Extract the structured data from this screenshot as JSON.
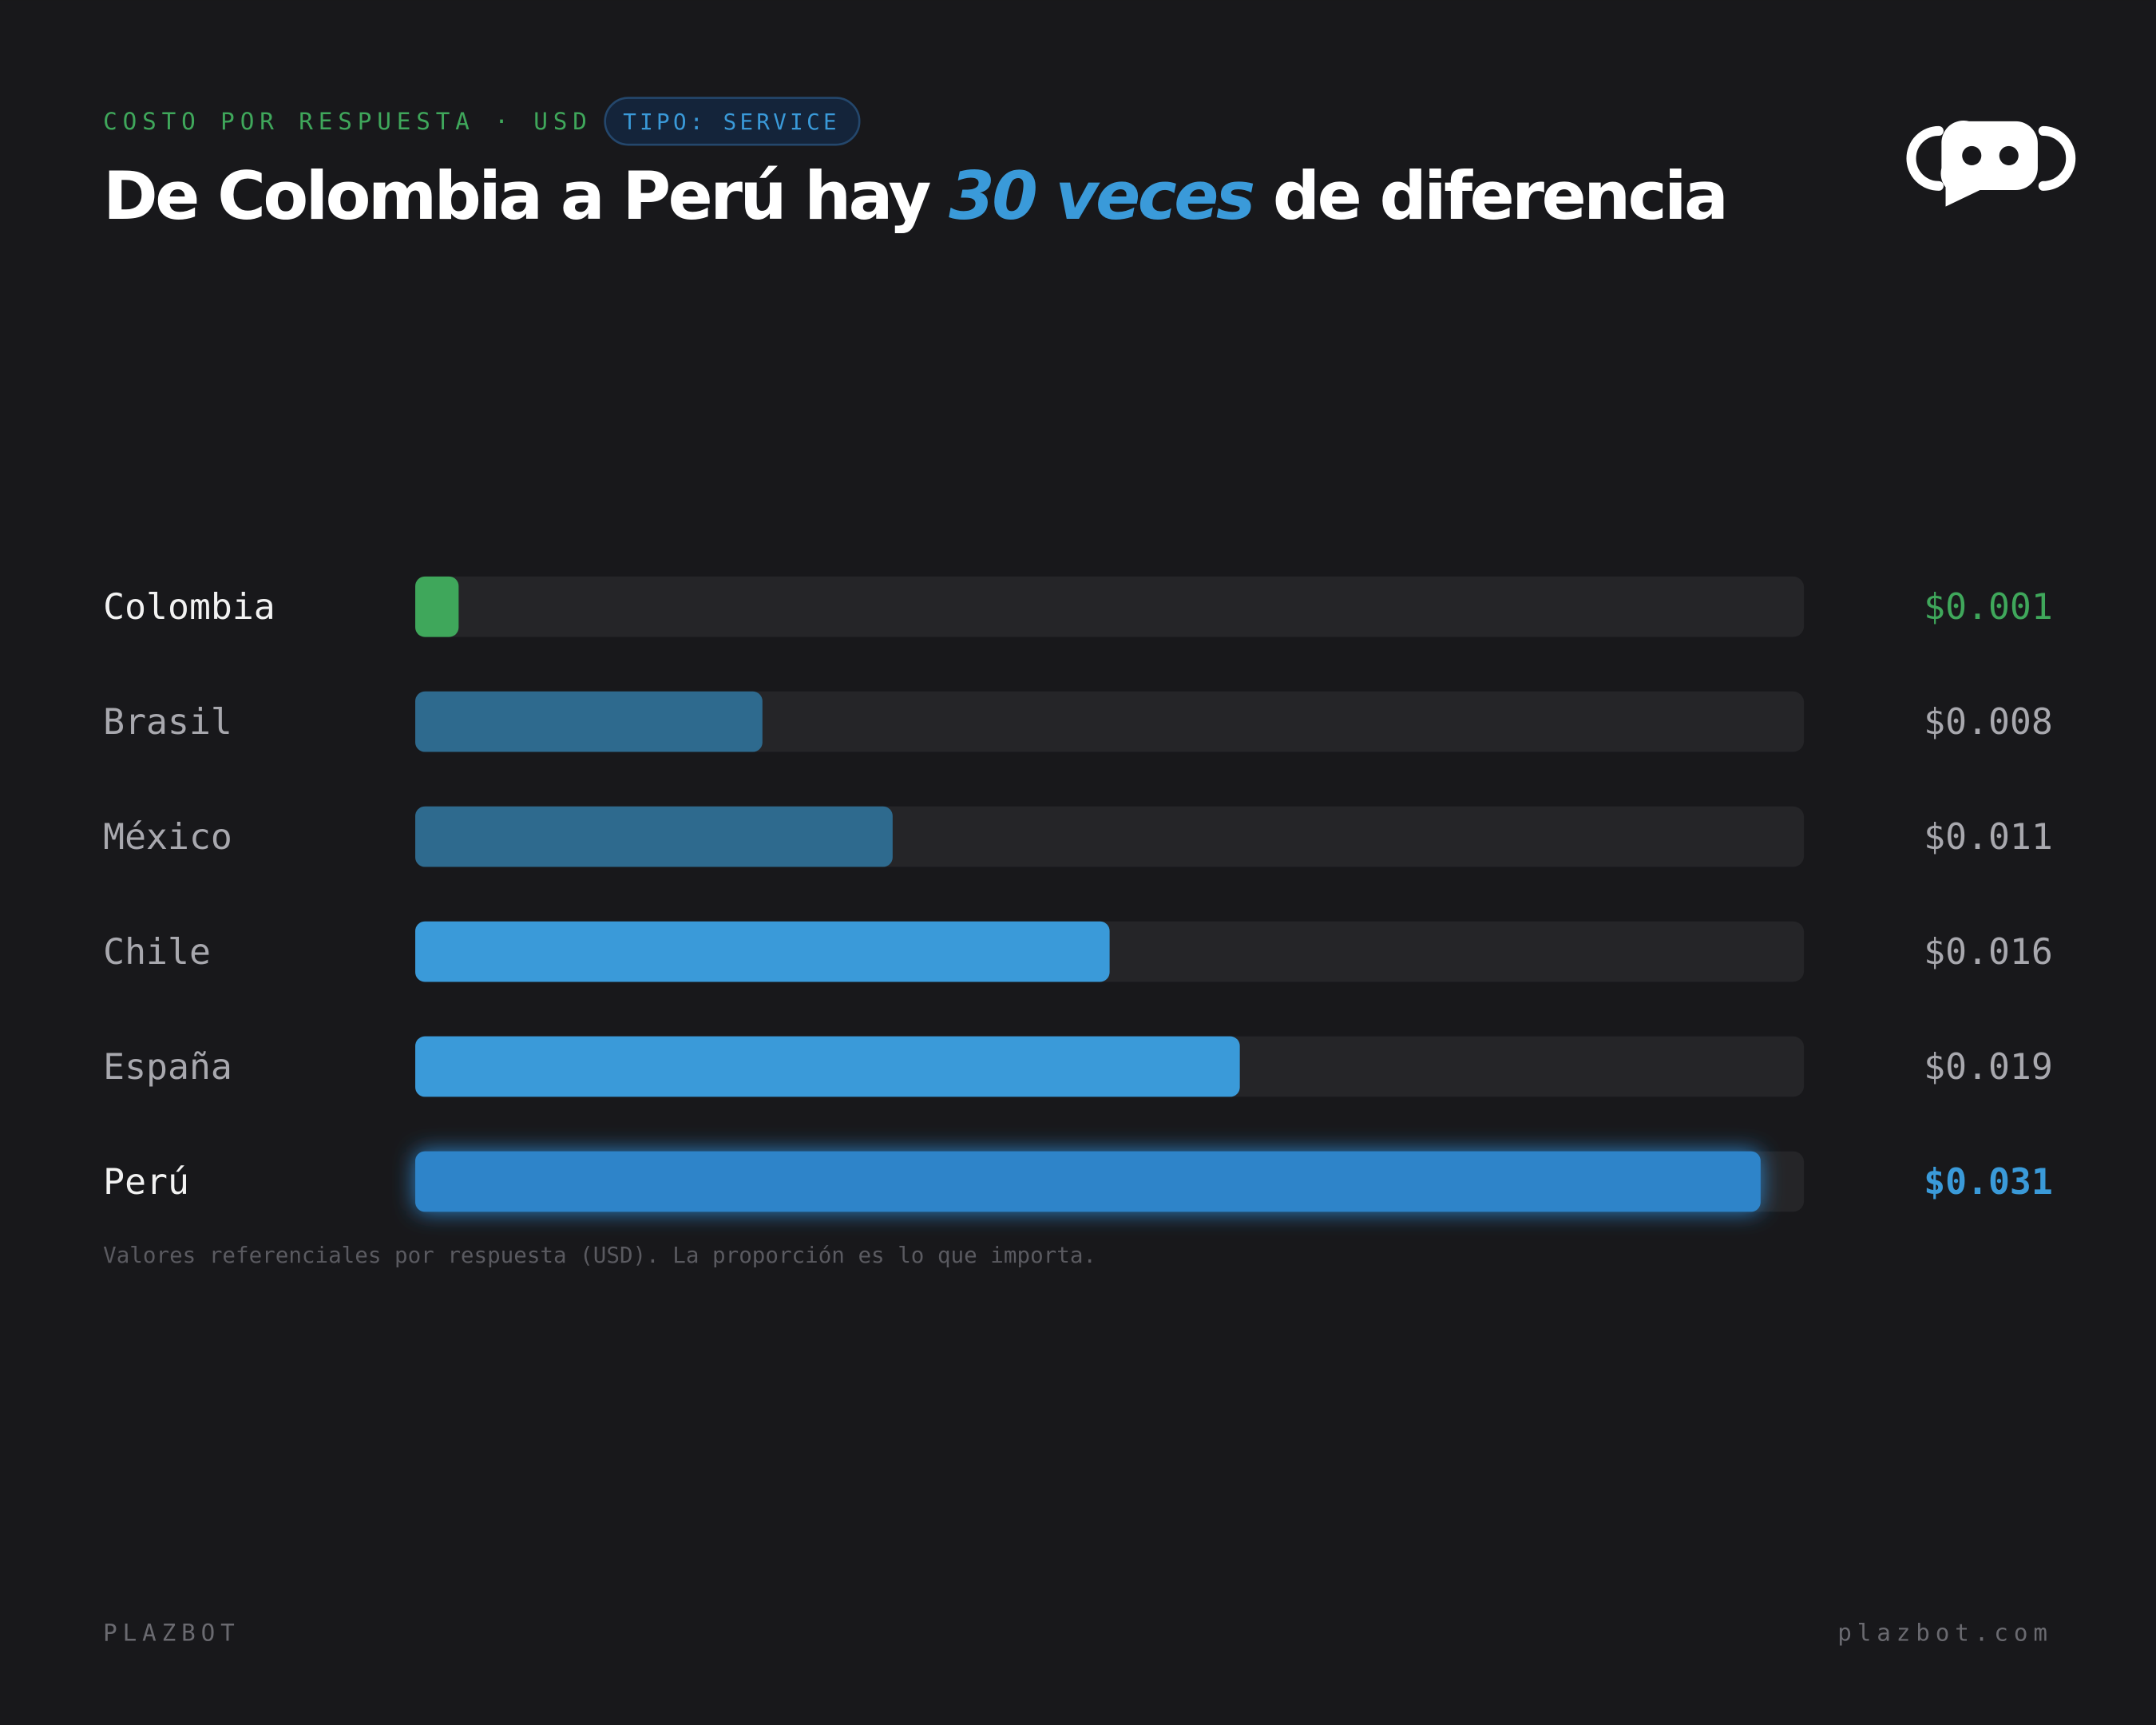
{
  "chart_data": {
    "type": "hbar",
    "kicker": "COSTO POR RESPUESTA · USD",
    "badge": "TIPO: SERVICE",
    "title_parts": [
      "De Colombia a Perú hay",
      "30 veces",
      "de diferencia"
    ],
    "categories": [
      "Colombia",
      "Brasil",
      "México",
      "Chile",
      "España",
      "Perú"
    ],
    "values": [
      0.001,
      0.008,
      0.011,
      0.016,
      0.019,
      0.031
    ],
    "value_labels": [
      "$0.001",
      "$0.008",
      "$0.011",
      "$0.016",
      "$0.019",
      "$0.031"
    ],
    "colors": [
      "#3fa75b",
      "#2e6a8e",
      "#2e6a8e",
      "#3a9ad9",
      "#3a9ad9",
      "#2f84c9"
    ],
    "label_colors": [
      "#f2f2f2",
      "#a8a8ae",
      "#a8a8ae",
      "#a8a8ae",
      "#a8a8ae",
      "#f2f2f2"
    ],
    "value_label_colors": [
      "#3fa75b",
      "#a8a8ae",
      "#a8a8ae",
      "#a8a8ae",
      "#a8a8ae",
      "#3a9ad9"
    ],
    "xlim": [
      0,
      0.032
    ],
    "footnote": "Valores referenciales por respuesta (USD). La proporción es lo que importa.",
    "footer_left": "PLAZBOT",
    "footer_right": "plazbot.com"
  }
}
